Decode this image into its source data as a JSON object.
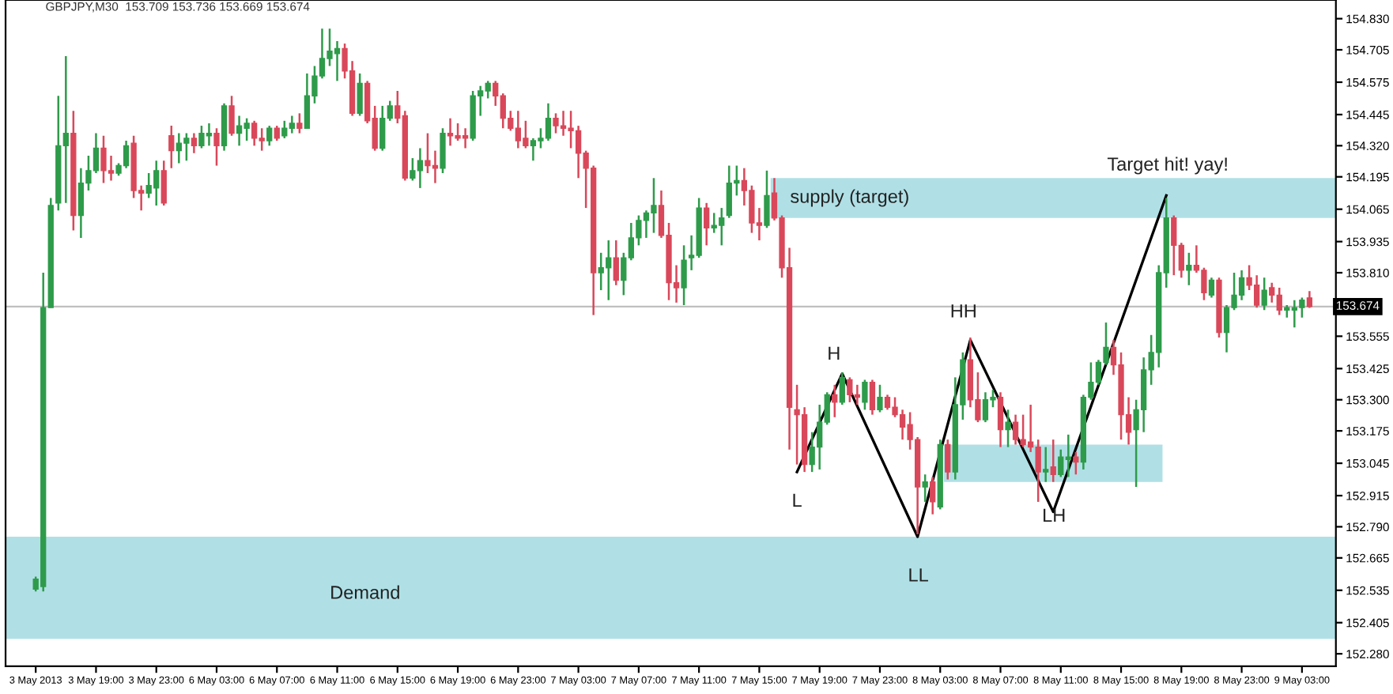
{
  "chart_data": {
    "type": "candlestick",
    "title": "GBPJPY,M30  153.709 153.736 153.669 153.674",
    "categories": [
      "3 May 2013",
      null,
      null,
      null,
      null,
      null,
      null,
      null,
      "3 May 19:00",
      null,
      null,
      null,
      null,
      null,
      null,
      null,
      "3 May 23:00",
      null,
      null,
      null,
      null,
      null,
      null,
      null,
      "6 May 03:00",
      null,
      null,
      null,
      null,
      null,
      null,
      null,
      "6 May 07:00",
      null,
      null,
      null,
      null,
      null,
      null,
      null,
      "6 May 11:00",
      null,
      null,
      null,
      null,
      null,
      null,
      null,
      "6 May 15:00",
      null,
      null,
      null,
      null,
      null,
      null,
      null,
      "6 May 19:00",
      null,
      null,
      null,
      null,
      null,
      null,
      null,
      "6 May 23:00",
      null,
      null,
      null,
      null,
      null,
      null,
      null,
      "7 May 03:00",
      null,
      null,
      null,
      null,
      null,
      null,
      null,
      "7 May 07:00",
      null,
      null,
      null,
      null,
      null,
      null,
      null,
      "7 May 11:00",
      null,
      null,
      null,
      null,
      null,
      null,
      null,
      "7 May 15:00",
      null,
      null,
      null,
      null,
      null,
      null,
      null,
      "7 May 19:00",
      null,
      null,
      null,
      null,
      null,
      null,
      null,
      "7 May 23:00",
      null,
      null,
      null,
      null,
      null,
      null,
      null,
      "8 May 03:00",
      null,
      null,
      null,
      null,
      null,
      null,
      null,
      "8 May 07:00",
      null,
      null,
      null,
      null,
      null,
      null,
      null,
      "8 May 11:00",
      null,
      null,
      null,
      null,
      null,
      null,
      null,
      "8 May 15:00",
      null,
      null,
      null,
      null,
      null,
      null,
      null,
      "8 May 19:00",
      null,
      null,
      null,
      null,
      null,
      null,
      null,
      "8 May 23:00",
      null,
      null,
      null,
      null,
      null,
      null,
      null,
      "9 May 03:00",
      null
    ],
    "ohlc": [
      [
        152.54,
        152.59,
        152.53,
        152.58
      ],
      [
        152.55,
        153.81,
        152.53,
        153.67
      ],
      [
        153.67,
        154.11,
        153.67,
        154.08
      ],
      [
        154.09,
        154.52,
        154.06,
        154.32
      ],
      [
        154.32,
        154.68,
        154.09,
        154.37
      ],
      [
        154.37,
        154.46,
        153.98,
        154.04
      ],
      [
        154.04,
        154.23,
        153.95,
        154.17
      ],
      [
        154.17,
        154.28,
        154.14,
        154.22
      ],
      [
        154.22,
        154.37,
        154.21,
        154.31
      ],
      [
        154.31,
        154.36,
        154.17,
        154.22
      ],
      [
        154.22,
        154.28,
        154.18,
        154.21
      ],
      [
        154.21,
        154.25,
        154.2,
        154.24
      ],
      [
        154.24,
        154.34,
        154.23,
        154.32
      ],
      [
        154.33,
        154.36,
        154.11,
        154.14
      ],
      [
        154.14,
        154.16,
        154.06,
        154.13
      ],
      [
        154.13,
        154.21,
        154.11,
        154.16
      ],
      [
        154.15,
        154.26,
        154.08,
        154.22
      ],
      [
        154.22,
        154.26,
        154.08,
        154.09
      ],
      [
        154.36,
        154.4,
        154.23,
        154.3
      ],
      [
        154.3,
        154.37,
        154.25,
        154.33
      ],
      [
        154.33,
        154.37,
        154.26,
        154.35
      ],
      [
        154.35,
        154.37,
        154.29,
        154.32
      ],
      [
        154.32,
        154.4,
        154.31,
        154.37
      ],
      [
        154.36,
        154.41,
        154.32,
        154.37
      ],
      [
        154.37,
        154.39,
        154.24,
        154.32
      ],
      [
        154.32,
        154.49,
        154.3,
        154.48
      ],
      [
        154.48,
        154.52,
        154.36,
        154.37
      ],
      [
        154.37,
        154.44,
        154.32,
        154.4
      ],
      [
        154.39,
        154.43,
        154.34,
        154.41
      ],
      [
        154.41,
        154.42,
        154.32,
        154.35
      ],
      [
        154.35,
        154.39,
        154.3,
        154.34
      ],
      [
        154.34,
        154.4,
        154.32,
        154.39
      ],
      [
        154.39,
        154.4,
        154.34,
        154.35
      ],
      [
        154.36,
        154.42,
        154.35,
        154.39
      ],
      [
        154.39,
        154.44,
        154.37,
        154.41
      ],
      [
        154.41,
        154.45,
        154.37,
        154.39
      ],
      [
        154.39,
        154.61,
        154.39,
        154.52
      ],
      [
        154.52,
        154.64,
        154.49,
        154.6
      ],
      [
        154.6,
        154.79,
        154.59,
        154.67
      ],
      [
        154.67,
        154.79,
        154.64,
        154.7
      ],
      [
        154.69,
        154.74,
        154.58,
        154.71
      ],
      [
        154.71,
        154.73,
        154.59,
        154.62
      ],
      [
        154.62,
        154.66,
        154.44,
        154.45
      ],
      [
        154.45,
        154.61,
        154.44,
        154.57
      ],
      [
        154.57,
        154.58,
        154.41,
        154.42
      ],
      [
        154.43,
        154.48,
        154.3,
        154.31
      ],
      [
        154.31,
        154.48,
        154.3,
        154.43
      ],
      [
        154.43,
        154.5,
        154.42,
        154.48
      ],
      [
        154.48,
        154.54,
        154.41,
        154.43
      ],
      [
        154.44,
        154.46,
        154.18,
        154.19
      ],
      [
        154.19,
        154.27,
        154.18,
        154.22
      ],
      [
        154.22,
        154.31,
        154.15,
        154.26
      ],
      [
        154.26,
        154.37,
        154.21,
        154.24
      ],
      [
        154.24,
        154.3,
        154.17,
        154.23
      ],
      [
        154.23,
        154.39,
        154.21,
        154.37
      ],
      [
        154.37,
        154.43,
        154.32,
        154.36
      ],
      [
        154.36,
        154.41,
        154.34,
        154.35
      ],
      [
        154.36,
        154.39,
        154.31,
        154.35
      ],
      [
        154.35,
        154.54,
        154.34,
        154.52
      ],
      [
        154.52,
        154.56,
        154.44,
        154.54
      ],
      [
        154.54,
        154.58,
        154.51,
        154.57
      ],
      [
        154.57,
        154.58,
        154.48,
        154.52
      ],
      [
        154.52,
        154.53,
        154.39,
        154.43
      ],
      [
        154.43,
        154.46,
        154.38,
        154.39
      ],
      [
        154.39,
        154.46,
        154.31,
        154.34
      ],
      [
        154.35,
        154.42,
        154.31,
        154.32
      ],
      [
        154.32,
        154.35,
        154.26,
        154.34
      ],
      [
        154.34,
        154.39,
        154.31,
        154.35
      ],
      [
        154.35,
        154.49,
        154.34,
        154.43
      ],
      [
        154.43,
        154.45,
        154.37,
        154.4
      ],
      [
        154.4,
        154.46,
        154.36,
        154.39
      ],
      [
        154.39,
        154.46,
        154.31,
        154.38
      ],
      [
        154.38,
        154.4,
        154.19,
        154.29
      ],
      [
        154.29,
        154.3,
        154.07,
        154.23
      ],
      [
        154.23,
        154.24,
        153.64,
        153.81
      ],
      [
        153.81,
        153.89,
        153.74,
        153.83
      ],
      [
        153.83,
        153.94,
        153.7,
        153.87
      ],
      [
        153.87,
        153.94,
        153.76,
        153.78
      ],
      [
        153.78,
        153.89,
        153.72,
        153.87
      ],
      [
        153.87,
        154.01,
        153.86,
        153.95
      ],
      [
        153.95,
        154.04,
        153.92,
        154.02
      ],
      [
        154.02,
        154.06,
        153.95,
        154.05
      ],
      [
        154.05,
        154.19,
        153.97,
        154.08
      ],
      [
        154.08,
        154.14,
        153.95,
        153.96
      ],
      [
        153.96,
        154.01,
        153.7,
        153.77
      ],
      [
        153.77,
        153.84,
        153.69,
        153.75
      ],
      [
        153.75,
        153.92,
        153.68,
        153.86
      ],
      [
        153.87,
        153.96,
        153.82,
        153.88
      ],
      [
        153.88,
        154.11,
        153.87,
        154.07
      ],
      [
        154.07,
        154.09,
        153.92,
        153.99
      ],
      [
        153.99,
        154.05,
        153.97,
        154.0
      ],
      [
        154.0,
        154.07,
        153.92,
        154.03
      ],
      [
        154.04,
        154.24,
        154.03,
        154.17
      ],
      [
        154.17,
        154.24,
        154.12,
        154.18
      ],
      [
        154.18,
        154.23,
        154.08,
        154.14
      ],
      [
        154.14,
        154.16,
        153.97,
        154.01
      ],
      [
        154.01,
        154.07,
        153.94,
        154.0
      ],
      [
        154.0,
        154.22,
        153.99,
        154.12
      ],
      [
        154.13,
        154.19,
        154.02,
        154.03
      ],
      [
        154.03,
        154.04,
        153.79,
        153.83
      ],
      [
        153.83,
        153.91,
        153.1,
        153.27
      ],
      [
        153.26,
        153.36,
        153.04,
        153.24
      ],
      [
        153.24,
        153.27,
        153.01,
        153.04
      ],
      [
        153.04,
        153.17,
        153.01,
        153.11
      ],
      [
        153.11,
        153.28,
        153.02,
        153.21
      ],
      [
        153.21,
        153.33,
        153.2,
        153.32
      ],
      [
        153.32,
        153.36,
        153.23,
        153.29
      ],
      [
        153.29,
        153.41,
        153.28,
        153.39
      ],
      [
        153.38,
        153.39,
        153.29,
        153.32
      ],
      [
        153.32,
        153.36,
        153.28,
        153.31
      ],
      [
        153.29,
        153.38,
        153.26,
        153.37
      ],
      [
        153.37,
        153.38,
        153.24,
        153.26
      ],
      [
        153.26,
        153.36,
        153.25,
        153.31
      ],
      [
        153.31,
        153.32,
        153.26,
        153.27
      ],
      [
        153.27,
        153.31,
        153.23,
        153.24
      ],
      [
        153.24,
        153.26,
        153.14,
        153.19
      ],
      [
        153.2,
        153.25,
        153.1,
        153.14
      ],
      [
        153.14,
        153.15,
        152.76,
        152.95
      ],
      [
        152.95,
        153.0,
        152.89,
        152.97
      ],
      [
        152.97,
        152.99,
        152.84,
        152.89
      ],
      [
        152.87,
        153.14,
        152.86,
        153.12
      ],
      [
        153.12,
        153.14,
        152.98,
        153.01
      ],
      [
        153.01,
        153.39,
        152.98,
        153.28
      ],
      [
        153.28,
        153.49,
        153.22,
        153.46
      ],
      [
        153.46,
        153.55,
        153.27,
        153.3
      ],
      [
        153.3,
        153.41,
        153.21,
        153.22
      ],
      [
        153.22,
        153.33,
        153.21,
        153.3
      ],
      [
        153.3,
        153.34,
        153.27,
        153.31
      ],
      [
        153.31,
        153.33,
        153.11,
        153.18
      ],
      [
        153.18,
        153.26,
        153.11,
        153.21
      ],
      [
        153.21,
        153.24,
        153.12,
        153.14
      ],
      [
        153.14,
        153.24,
        153.11,
        153.12
      ],
      [
        153.13,
        153.28,
        153.09,
        153.11
      ],
      [
        153.11,
        153.14,
        152.89,
        153.01
      ],
      [
        153.01,
        153.11,
        152.97,
        153.02
      ],
      [
        153.03,
        153.14,
        152.97,
        153.0
      ],
      [
        153.0,
        153.1,
        152.99,
        153.07
      ],
      [
        153.06,
        153.16,
        152.99,
        153.07
      ],
      [
        153.07,
        153.09,
        153.0,
        153.05
      ],
      [
        153.05,
        153.32,
        153.02,
        153.31
      ],
      [
        153.31,
        153.45,
        153.3,
        153.37
      ],
      [
        153.37,
        153.46,
        153.36,
        153.45
      ],
      [
        153.45,
        153.61,
        153.44,
        153.51
      ],
      [
        153.51,
        153.54,
        153.4,
        153.44
      ],
      [
        153.44,
        153.49,
        153.14,
        153.24
      ],
      [
        153.24,
        153.31,
        153.12,
        153.17
      ],
      [
        153.18,
        153.3,
        152.95,
        153.26
      ],
      [
        153.26,
        153.47,
        153.17,
        153.42
      ],
      [
        153.42,
        153.56,
        153.36,
        153.49
      ],
      [
        153.49,
        153.84,
        153.43,
        153.81
      ],
      [
        153.81,
        154.11,
        153.75,
        154.03
      ],
      [
        154.03,
        154.04,
        153.8,
        153.92
      ],
      [
        153.92,
        153.93,
        153.79,
        153.82
      ],
      [
        153.82,
        153.89,
        153.76,
        153.84
      ],
      [
        153.84,
        153.92,
        153.81,
        153.82
      ],
      [
        153.82,
        153.83,
        153.7,
        153.73
      ],
      [
        153.72,
        153.79,
        153.71,
        153.78
      ],
      [
        153.78,
        153.79,
        153.55,
        153.57
      ],
      [
        153.57,
        153.68,
        153.49,
        153.67
      ],
      [
        153.67,
        153.81,
        153.66,
        153.72
      ],
      [
        153.72,
        153.82,
        153.7,
        153.79
      ],
      [
        153.79,
        153.84,
        153.74,
        153.76
      ],
      [
        153.76,
        153.8,
        153.67,
        153.68
      ],
      [
        153.68,
        153.79,
        153.66,
        153.74
      ],
      [
        153.75,
        153.77,
        153.69,
        153.72
      ],
      [
        153.72,
        153.75,
        153.64,
        153.66
      ],
      [
        153.66,
        153.68,
        153.63,
        153.67
      ],
      [
        153.66,
        153.7,
        153.59,
        153.67
      ],
      [
        153.67,
        153.71,
        153.63,
        153.7
      ],
      [
        153.709,
        153.736,
        153.669,
        153.674
      ]
    ],
    "colors": [
      "#2e9b4a",
      "#2e9b4a",
      "#2e9b4a",
      "#2e9b4a",
      "#2e9b4a",
      "#d9485a",
      "#2e9b4a",
      "#2e9b4a",
      "#2e9b4a",
      "#d9485a",
      "#d9485a",
      "#2e9b4a",
      "#2e9b4a",
      "#d9485a",
      "#d9485a",
      "#2e9b4a",
      "#2e9b4a",
      "#d9485a",
      "#d9485a",
      "#2e9b4a",
      "#2e9b4a",
      "#d9485a",
      "#2e9b4a",
      "#2e9b4a",
      "#d9485a",
      "#2e9b4a",
      "#d9485a",
      "#2e9b4a",
      "#2e9b4a",
      "#d9485a",
      "#d9485a",
      "#2e9b4a",
      "#d9485a",
      "#2e9b4a",
      "#2e9b4a",
      "#d9485a",
      "#2e9b4a",
      "#2e9b4a",
      "#2e9b4a",
      "#2e9b4a",
      "#2e9b4a",
      "#d9485a",
      "#d9485a",
      "#2e9b4a",
      "#d9485a",
      "#d9485a",
      "#2e9b4a",
      "#2e9b4a",
      "#d9485a",
      "#d9485a",
      "#2e9b4a",
      "#2e9b4a",
      "#d9485a",
      "#d9485a",
      "#2e9b4a",
      "#d9485a",
      "#d9485a",
      "#d9485a",
      "#2e9b4a",
      "#2e9b4a",
      "#2e9b4a",
      "#d9485a",
      "#d9485a",
      "#d9485a",
      "#d9485a",
      "#d9485a",
      "#2e9b4a",
      "#2e9b4a",
      "#2e9b4a",
      "#d9485a",
      "#d9485a",
      "#d9485a",
      "#d9485a",
      "#d9485a",
      "#d9485a",
      "#2e9b4a",
      "#2e9b4a",
      "#d9485a",
      "#2e9b4a",
      "#2e9b4a",
      "#2e9b4a",
      "#2e9b4a",
      "#2e9b4a",
      "#d9485a",
      "#d9485a",
      "#d9485a",
      "#2e9b4a",
      "#2e9b4a",
      "#2e9b4a",
      "#d9485a",
      "#2e9b4a",
      "#2e9b4a",
      "#2e9b4a",
      "#2e9b4a",
      "#d9485a",
      "#d9485a",
      "#d9485a",
      "#2e9b4a",
      "#d9485a",
      "#d9485a",
      "#d9485a",
      "#d9485a",
      "#d9485a",
      "#2e9b4a",
      "#2e9b4a",
      "#2e9b4a",
      "#d9485a",
      "#2e9b4a",
      "#d9485a",
      "#d9485a",
      "#2e9b4a",
      "#d9485a",
      "#2e9b4a",
      "#d9485a",
      "#d9485a",
      "#d9485a",
      "#d9485a",
      "#d9485a",
      "#2e9b4a",
      "#d9485a",
      "#2e9b4a",
      "#d9485a",
      "#2e9b4a",
      "#2e9b4a",
      "#d9485a",
      "#d9485a",
      "#2e9b4a",
      "#2e9b4a",
      "#d9485a",
      "#2e9b4a",
      "#d9485a",
      "#d9485a",
      "#d9485a",
      "#d9485a",
      "#2e9b4a",
      "#d9485a",
      "#2e9b4a",
      "#2e9b4a",
      "#d9485a",
      "#2e9b4a",
      "#2e9b4a",
      "#2e9b4a",
      "#2e9b4a",
      "#d9485a",
      "#d9485a",
      "#d9485a",
      "#2e9b4a",
      "#2e9b4a",
      "#2e9b4a",
      "#2e9b4a",
      "#2e9b4a",
      "#d9485a",
      "#d9485a",
      "#2e9b4a",
      "#d9485a",
      "#d9485a",
      "#2e9b4a",
      "#d9485a",
      "#2e9b4a",
      "#2e9b4a",
      "#2e9b4a",
      "#d9485a",
      "#d9485a",
      "#2e9b4a",
      "#d9485a",
      "#d9485a",
      "#2e9b4a",
      "#2e9b4a",
      "#2e9b4a",
      "#d9485a"
    ],
    "series": [
      {
        "type": "line",
        "color": "#000000",
        "values": [
          null,
          null,
          null,
          null,
          null,
          null,
          null,
          null,
          null,
          null,
          null,
          null,
          null,
          null,
          null,
          null,
          null,
          null,
          null,
          null,
          null,
          null,
          null,
          null,
          null,
          null,
          null,
          null,
          null,
          null,
          null,
          null,
          null,
          null,
          null,
          null,
          null,
          null,
          null,
          null,
          null,
          null,
          null,
          null,
          null,
          null,
          null,
          null,
          null,
          null,
          null,
          null,
          null,
          null,
          null,
          null,
          null,
          null,
          null,
          null,
          null,
          null,
          null,
          null,
          null,
          null,
          null,
          null,
          null,
          null,
          null,
          null,
          null,
          null,
          null,
          null,
          null,
          null,
          null,
          null,
          null,
          null,
          null,
          null,
          null,
          null,
          null,
          null,
          null,
          null,
          null,
          null,
          null,
          null,
          null,
          null,
          null,
          null,
          null,
          null,
          null,
          153.01,
          null,
          null,
          null,
          null,
          null,
          153.405,
          null,
          null,
          null,
          null,
          null,
          null,
          null,
          null,
          null,
          152.75,
          null,
          null,
          null,
          null,
          null,
          null,
          153.54,
          null,
          null,
          null,
          null,
          null,
          null,
          null,
          null,
          null,
          null,
          152.85,
          null,
          null,
          null,
          null,
          null,
          null,
          null,
          null,
          null,
          null,
          null,
          null,
          null,
          null,
          154.12,
          null,
          null,
          null,
          null,
          null,
          null,
          null,
          null,
          null,
          null,
          null,
          null,
          null,
          null,
          null,
          null,
          null,
          null,
          null
        ]
      }
    ],
    "ylim": [
      152.23,
      154.905
    ],
    "yticks": [
      {
        "value": 154.83,
        "label": "154.830"
      },
      {
        "value": 154.705,
        "label": "154.705"
      },
      {
        "value": 154.575,
        "label": "154.575"
      },
      {
        "value": 154.445,
        "label": "154.445"
      },
      {
        "value": 154.32,
        "label": "154.320"
      },
      {
        "value": 154.195,
        "label": "154.195"
      },
      {
        "value": 154.065,
        "label": "154.065"
      },
      {
        "value": 153.935,
        "label": "153.935"
      },
      {
        "value": 153.81,
        "label": "153.810"
      },
      {
        "value": 153.555,
        "label": "153.555"
      },
      {
        "value": 153.425,
        "label": "153.425"
      },
      {
        "value": 153.3,
        "label": "153.300"
      },
      {
        "value": 153.175,
        "label": "153.175"
      },
      {
        "value": 153.045,
        "label": "153.045"
      },
      {
        "value": 152.915,
        "label": "152.915"
      },
      {
        "value": 152.79,
        "label": "152.790"
      },
      {
        "value": 152.665,
        "label": "152.665"
      },
      {
        "value": 152.535,
        "label": "152.535"
      },
      {
        "value": 152.405,
        "label": "152.405"
      },
      {
        "value": 152.28,
        "label": "152.280"
      }
    ],
    "ref_lines": [
      {
        "axis": "y",
        "value": 153.674,
        "label": "153.674",
        "color": "#c0c0c0"
      }
    ],
    "bands": [
      {
        "axis": "y",
        "from": 154.03,
        "to": 154.19,
        "color": "#b0e0e6"
      },
      {
        "axis": "y",
        "from": 152.97,
        "to": 153.12,
        "color": "#b0e0e6"
      },
      {
        "axis": "y",
        "from": 152.34,
        "to": 152.75,
        "color": "#b0e0e6"
      }
    ],
    "annotations": [
      "supply (target)",
      "Demand",
      "L",
      "H",
      "LL",
      "HH",
      "LH",
      "Target hit! yay!"
    ]
  }
}
